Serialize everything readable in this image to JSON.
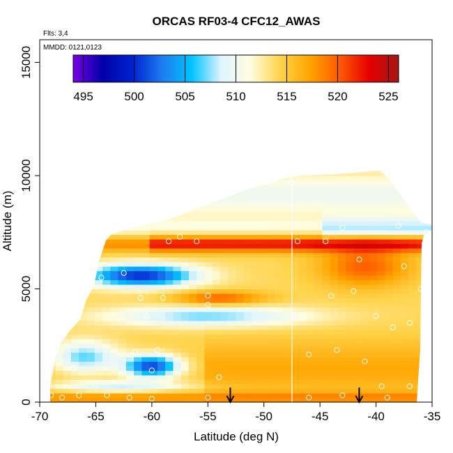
{
  "chart_data": {
    "type": "heatmap",
    "title": "ORCAS RF03-4 CFC12_AWAS",
    "flights_note": "Flts: 3,4",
    "date_note": "MMDD: 0121,0123",
    "xlabel": "Latitude (deg N)",
    "ylabel": "Altitude (m)",
    "xlim": [
      -70,
      -35
    ],
    "ylim": [
      0,
      16000
    ],
    "x_ticks": [
      "-70",
      "-65",
      "-60",
      "-55",
      "-50",
      "-45",
      "-40",
      "-35"
    ],
    "y_ticks": [
      "0",
      "5000",
      "10000",
      "15000"
    ],
    "colorbar": {
      "range": [
        494,
        526
      ],
      "tick_labels": [
        "495",
        "500",
        "505",
        "510",
        "515",
        "520",
        "525"
      ],
      "colors": [
        "#7a00e6",
        "#0000a8",
        "#0022d0",
        "#1e7bf0",
        "#00c3ff",
        "#dff5ff",
        "#fffde0",
        "#ffd34a",
        "#ffa500",
        "#ff5a00",
        "#e60000",
        "#a31515"
      ]
    },
    "marker_latitudes": [
      -53,
      -41.5
    ],
    "vertical_line_latitude": -47.5,
    "field_description": "Interpolated CFC12 mixing ratio over latitude/altitude; fill bounded by flight envelope",
    "sample_points": [
      {
        "lat": -69,
        "alt": 300
      },
      {
        "lat": -68,
        "alt": 200
      },
      {
        "lat": -66.5,
        "alt": 300
      },
      {
        "lat": -65,
        "alt": 800
      },
      {
        "lat": -62,
        "alt": 200
      },
      {
        "lat": -60,
        "alt": 1400
      },
      {
        "lat": -59.5,
        "alt": 2300
      },
      {
        "lat": -61.5,
        "alt": 2200
      },
      {
        "lat": -66,
        "alt": 7100
      },
      {
        "lat": -64.5,
        "alt": 5500
      },
      {
        "lat": -62.5,
        "alt": 5700
      },
      {
        "lat": -61,
        "alt": 4600
      },
      {
        "lat": -60.5,
        "alt": 3800
      },
      {
        "lat": -58.5,
        "alt": 7100
      },
      {
        "lat": -57.5,
        "alt": 7300
      },
      {
        "lat": -56,
        "alt": 7100
      },
      {
        "lat": -55,
        "alt": 4700
      },
      {
        "lat": -55,
        "alt": 4300
      },
      {
        "lat": -59,
        "alt": 4600
      },
      {
        "lat": -47.5,
        "alt": 9700
      },
      {
        "lat": -47,
        "alt": 7100
      },
      {
        "lat": -44.5,
        "alt": 7100
      },
      {
        "lat": -43,
        "alt": 7700
      },
      {
        "lat": -41.5,
        "alt": 6300
      },
      {
        "lat": -42,
        "alt": 4900
      },
      {
        "lat": -44,
        "alt": 4700
      },
      {
        "lat": -40,
        "alt": 3800
      },
      {
        "lat": -38.5,
        "alt": 3300
      },
      {
        "lat": -37,
        "alt": 3500
      },
      {
        "lat": -37.5,
        "alt": 6000
      },
      {
        "lat": -35.5,
        "alt": 7500
      },
      {
        "lat": -38,
        "alt": 7800
      },
      {
        "lat": -36,
        "alt": 5000
      },
      {
        "lat": -46,
        "alt": 2100
      },
      {
        "lat": -43.5,
        "alt": 2300
      },
      {
        "lat": -41,
        "alt": 1800
      },
      {
        "lat": -39.5,
        "alt": 700
      },
      {
        "lat": -37,
        "alt": 700
      },
      {
        "lat": -43,
        "alt": 300
      },
      {
        "lat": -46,
        "alt": 200
      },
      {
        "lat": -55,
        "alt": 200
      },
      {
        "lat": -60,
        "alt": 150
      },
      {
        "lat": -64,
        "alt": 300
      },
      {
        "lat": -67,
        "alt": 1500
      },
      {
        "lat": -54,
        "alt": 1100
      },
      {
        "lat": -39,
        "alt": 200
      }
    ]
  }
}
